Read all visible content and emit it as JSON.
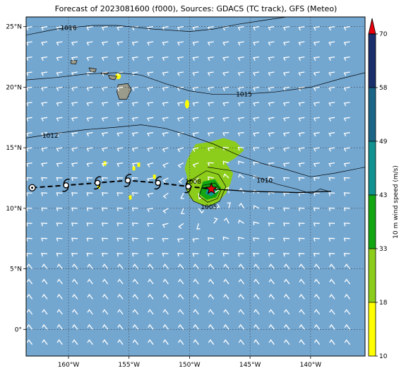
{
  "title": "Forecast of 2023081600 (f000), Sources: GDACS (TC track), GFS (Meteo)",
  "map": {
    "lon_range": [
      -163.5,
      -135.5
    ],
    "lat_range": [
      -2.2,
      25.8
    ],
    "lon_ticks": [
      {
        "value": -160,
        "label": "160°W"
      },
      {
        "value": -155,
        "label": "155°W"
      },
      {
        "value": -150,
        "label": "150°W"
      },
      {
        "value": -145,
        "label": "145°W"
      },
      {
        "value": -140,
        "label": "140°W"
      }
    ],
    "lat_ticks": [
      {
        "value": 25,
        "label": "25°N"
      },
      {
        "value": 20,
        "label": "20°N"
      },
      {
        "value": 15,
        "label": "15°N"
      },
      {
        "value": 10,
        "label": "10°N"
      },
      {
        "value": 5,
        "label": "5°N"
      },
      {
        "value": 0,
        "label": "0°"
      }
    ],
    "ocean_color": "#74a7d0",
    "isobars": [
      {
        "label": "1018",
        "label_at": [
          -160.0,
          24.9
        ],
        "points": [
          [
            -163.5,
            24.3
          ],
          [
            -161,
            24.8
          ],
          [
            -158,
            25.1
          ],
          [
            -156,
            25.1
          ],
          [
            -153,
            24.8
          ],
          [
            -150,
            24.6
          ],
          [
            -148,
            24.8
          ],
          [
            -146,
            25.2
          ],
          [
            -144,
            25.5
          ],
          [
            -142,
            25.8
          ]
        ]
      },
      {
        "label": "1015",
        "label_at": [
          -145.5,
          19.4
        ],
        "points": [
          [
            -163.5,
            20.6
          ],
          [
            -161,
            20.8
          ],
          [
            -158.5,
            21.1
          ],
          [
            -156,
            21.2
          ],
          [
            -154,
            21.0
          ],
          [
            -152,
            20.3
          ],
          [
            -150,
            19.7
          ],
          [
            -148,
            19.4
          ],
          [
            -146,
            19.4
          ],
          [
            -143,
            19.6
          ],
          [
            -140,
            20.0
          ],
          [
            -137.5,
            20.7
          ],
          [
            -135.5,
            21.2
          ]
        ]
      },
      {
        "label": "1012",
        "label_at": [
          -161.5,
          16.0
        ],
        "points": [
          [
            -163.5,
            15.8
          ],
          [
            -161,
            16.2
          ],
          [
            -158.5,
            16.5
          ],
          [
            -156,
            16.7
          ],
          [
            -154,
            16.9
          ],
          [
            -152,
            16.6
          ],
          [
            -150,
            16.0
          ],
          [
            -148,
            15.3
          ],
          [
            -146,
            14.4
          ],
          [
            -144,
            13.7
          ],
          [
            -142,
            13.2
          ],
          [
            -140,
            12.6
          ],
          [
            -138,
            12.9
          ],
          [
            -136,
            13.3
          ],
          [
            -135.5,
            13.4
          ]
        ]
      },
      {
        "label": "1010",
        "label_at": [
          -143.8,
          12.3
        ],
        "points": [
          [
            -148.5,
            13.4
          ],
          [
            -146.5,
            13.1
          ],
          [
            -144.5,
            12.6
          ],
          [
            -142.8,
            12.0
          ],
          [
            -141.2,
            11.6
          ],
          [
            -139.9,
            11.2
          ],
          [
            -139.2,
            11.6
          ],
          [
            -138.5,
            11.4
          ]
        ]
      },
      {
        "label": "1008",
        "label_at": [
          -149.7,
          12.2
        ],
        "closed": true,
        "points": [
          [
            -149.9,
            12.3
          ],
          [
            -148.6,
            13.1
          ],
          [
            -147.6,
            12.8
          ],
          [
            -147.0,
            11.8
          ],
          [
            -147.5,
            10.6
          ],
          [
            -148.5,
            10.1
          ],
          [
            -149.7,
            10.6
          ],
          [
            -150.3,
            11.6
          ],
          [
            -149.9,
            12.3
          ]
        ]
      },
      {
        "label": "1005",
        "label_at": [
          -148.4,
          10.1
        ],
        "closed": true,
        "points": [
          [
            -148.9,
            11.9
          ],
          [
            -147.9,
            12.1
          ],
          [
            -147.4,
            11.5
          ],
          [
            -147.7,
            10.8
          ],
          [
            -148.5,
            10.5
          ],
          [
            -149.2,
            11.0
          ],
          [
            -148.9,
            11.9
          ]
        ]
      }
    ],
    "wind_field": [
      {
        "polygon": [
          [
            -150.2,
            14.0
          ],
          [
            -149.5,
            15.3
          ],
          [
            -148.2,
            15.5
          ],
          [
            -147.2,
            15.8
          ],
          [
            -146.2,
            15.5
          ],
          [
            -145.5,
            14.8
          ],
          [
            -146.3,
            14.1
          ],
          [
            -147.0,
            13.7
          ],
          [
            -146.4,
            12.9
          ],
          [
            -146.6,
            12.1
          ],
          [
            -147.0,
            11.2
          ],
          [
            -147.8,
            10.4
          ],
          [
            -148.6,
            10.2
          ],
          [
            -149.5,
            10.5
          ],
          [
            -150.0,
            10.9
          ],
          [
            -150.3,
            11.7
          ],
          [
            -150.2,
            12.6
          ],
          [
            -150.4,
            13.3
          ]
        ],
        "level": "18-33"
      },
      {
        "polygon": [
          [
            -148.9,
            12.2
          ],
          [
            -147.9,
            12.4
          ],
          [
            -147.4,
            11.7
          ],
          [
            -147.8,
            10.9
          ],
          [
            -148.6,
            10.7
          ],
          [
            -149.2,
            11.2
          ]
        ],
        "level": "33-43"
      },
      {
        "polygon": [
          [
            -148.5,
            11.7
          ],
          [
            -148.0,
            11.8
          ],
          [
            -147.8,
            11.3
          ],
          [
            -148.2,
            11.0
          ],
          [
            -148.7,
            11.2
          ]
        ],
        "level": "43-49"
      }
    ],
    "islands": [
      {
        "name": "Hawaii Island",
        "points": [
          [
            -155.9,
            20.2
          ],
          [
            -155.1,
            20.3
          ],
          [
            -154.8,
            19.8
          ],
          [
            -155.2,
            19.0
          ],
          [
            -155.8,
            19.0
          ],
          [
            -156.0,
            19.6
          ]
        ]
      },
      {
        "name": "Maui",
        "points": [
          [
            -156.7,
            21.0
          ],
          [
            -156.0,
            20.9
          ],
          [
            -156.2,
            20.6
          ],
          [
            -156.6,
            20.7
          ]
        ]
      },
      {
        "name": "Molokai",
        "points": [
          [
            -157.3,
            21.2
          ],
          [
            -156.7,
            21.2
          ],
          [
            -156.8,
            21.05
          ],
          [
            -157.3,
            21.1
          ]
        ]
      },
      {
        "name": "Oahu",
        "points": [
          [
            -158.3,
            21.6
          ],
          [
            -157.7,
            21.5
          ],
          [
            -157.8,
            21.25
          ],
          [
            -158.2,
            21.3
          ]
        ]
      },
      {
        "name": "Kauai",
        "points": [
          [
            -159.8,
            22.2
          ],
          [
            -159.3,
            22.2
          ],
          [
            -159.4,
            21.9
          ],
          [
            -159.8,
            21.95
          ]
        ]
      }
    ],
    "tc_track": {
      "forecast": [
        {
          "lon": -163.0,
          "lat": 11.7
        },
        {
          "lon": -160.2,
          "lat": 11.9
        },
        {
          "lon": -157.6,
          "lat": 12.1
        },
        {
          "lon": -155.1,
          "lat": 12.3
        },
        {
          "lon": -152.6,
          "lat": 12.1
        },
        {
          "lon": -150.1,
          "lat": 11.8
        }
      ],
      "current": {
        "lon": -148.2,
        "lat": 11.6
      },
      "past": [
        {
          "lon": -148.2,
          "lat": 11.6
        },
        {
          "lon": -145.0,
          "lat": 11.4
        },
        {
          "lon": -141.0,
          "lat": 11.3
        },
        {
          "lon": -138.3,
          "lat": 11.4
        }
      ]
    }
  },
  "colorbar": {
    "label": "10 m wind speed (m/s)",
    "levels": [
      {
        "from": 10,
        "to": 18,
        "color": "#ffff00"
      },
      {
        "from": 18,
        "to": 33,
        "color": "#8ccc1a"
      },
      {
        "from": 33,
        "to": 43,
        "color": "#13a613"
      },
      {
        "from": 43,
        "to": 49,
        "color": "#11918f"
      },
      {
        "from": 49,
        "to": 58,
        "color": "#1b6587"
      },
      {
        "from": 58,
        "to": 70,
        "color": "#1a2f6b"
      }
    ],
    "extend_color": "#e8000b",
    "tick_labels": [
      "10",
      "18",
      "33",
      "43",
      "49",
      "58",
      "70"
    ]
  }
}
